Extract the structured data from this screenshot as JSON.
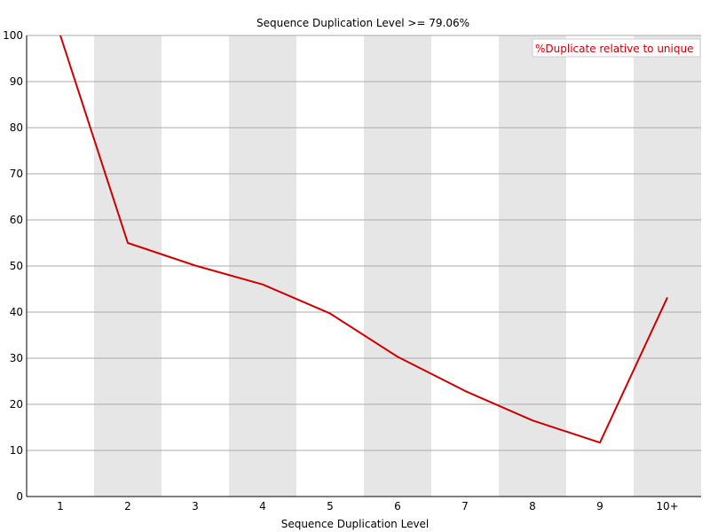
{
  "chart_data": {
    "type": "line",
    "title": "Sequence Duplication Level >= 79.06%",
    "xlabel": "Sequence Duplication Level",
    "ylabel": "",
    "categories": [
      "1",
      "2",
      "3",
      "4",
      "5",
      "6",
      "7",
      "8",
      "9",
      "10+"
    ],
    "ylim": [
      0,
      100
    ],
    "yticks": [
      "0",
      "10",
      "20",
      "30",
      "40",
      "50",
      "60",
      "70",
      "80",
      "90",
      "100"
    ],
    "grid": true,
    "legend_position": "top-right",
    "series": [
      {
        "name": "%Duplicate relative to unique",
        "color": "#cc0000",
        "values": [
          100,
          55.0,
          50.1,
          46.0,
          39.7,
          30.3,
          22.9,
          16.5,
          11.7,
          43.2
        ]
      }
    ]
  }
}
